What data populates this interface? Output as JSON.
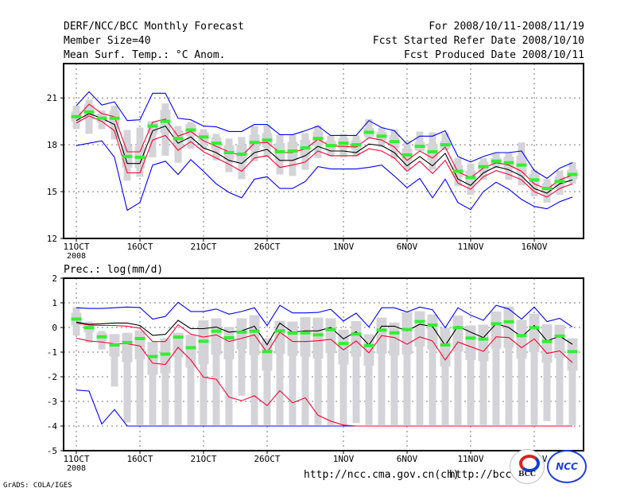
{
  "header": {
    "title": "DERF/NCC/BCC Monthly Forecast",
    "member_size": "Member Size=40",
    "variable": "Mean Surf. Temp.: °C Anom.",
    "period": "For 2008/10/11-2008/11/19",
    "start_date": "Fcst Started Refer Date 2008/10/10",
    "produced_date": "Fcst Produced Date 2008/10/11"
  },
  "footer": {
    "grads": "GrADS: COLA/IGES",
    "url_ncc": "http://ncc.cma.gov.cn(ch)",
    "url_bcc": "http://bcc.",
    "logo_bcc": "BCC",
    "logo_ncc": "NCC"
  },
  "colors": {
    "max_min": "#0000ff",
    "spread": "#ff0033",
    "mean": "#000000",
    "obs": "#33ee33",
    "bar": "#d4d4d8"
  },
  "chart_data": [
    {
      "type": "line",
      "title": "Mean Surf. Temp.: °C Anom.",
      "x_tick_labels": [
        "11OCT",
        "16OCT",
        "21OCT",
        "26OCT",
        "1NOV",
        "6NOV",
        "11NOV",
        "16NOV"
      ],
      "x_tick_days": [
        0,
        5,
        10,
        15,
        21,
        26,
        31,
        36
      ],
      "x_year_label": "2008",
      "y_ticks": [
        "21",
        "18",
        "15",
        "12"
      ],
      "y_tick_values": [
        21,
        18,
        15,
        12
      ],
      "ylim": [
        12,
        23.2
      ],
      "grid": true,
      "days": 40,
      "max": [
        20.5,
        21.4,
        20.55,
        20.75,
        19.55,
        19.6,
        21.3,
        21.3,
        19.7,
        19.6,
        19.2,
        19.15,
        18.85,
        18.85,
        19.3,
        19.3,
        18.65,
        18.65,
        18.9,
        19.2,
        18.6,
        18.6,
        18.6,
        19.55,
        19.1,
        18.9,
        18.05,
        18.55,
        18.55,
        18.9,
        17.25,
        16.9,
        17.25,
        17.5,
        17.5,
        17.6,
        16.35,
        15.85,
        16.5,
        16.85
      ],
      "min": [
        17.95,
        18.1,
        18.25,
        17.2,
        13.8,
        14.3,
        16.7,
        16.95,
        16.1,
        17.05,
        16.3,
        15.5,
        14.95,
        14.6,
        15.8,
        15.95,
        15.2,
        15.2,
        15.65,
        16.6,
        16.45,
        16.45,
        16.45,
        16.55,
        16.7,
        16.0,
        15.25,
        15.85,
        14.6,
        15.8,
        14.3,
        13.85,
        15.0,
        15.6,
        15.15,
        14.5,
        14.05,
        13.9,
        14.35,
        14.65
      ],
      "spread_upper": [
        19.7,
        20.6,
        20.0,
        19.8,
        17.55,
        17.55,
        19.45,
        19.65,
        18.55,
        18.85,
        18.25,
        17.9,
        17.55,
        17.3,
        18.1,
        18.15,
        17.5,
        17.5,
        17.75,
        18.35,
        17.9,
        17.9,
        17.85,
        18.45,
        18.3,
        17.85,
        17.0,
        17.6,
        17.15,
        17.85,
        16.25,
        15.9,
        16.5,
        16.85,
        16.7,
        16.3,
        15.5,
        15.15,
        15.75,
        16.05
      ],
      "spread_lower": [
        19.4,
        19.85,
        19.5,
        18.9,
        16.2,
        16.2,
        18.3,
        18.6,
        17.65,
        18.2,
        17.55,
        17.15,
        16.75,
        16.3,
        17.15,
        17.3,
        16.55,
        16.7,
        16.9,
        17.6,
        17.3,
        17.3,
        17.3,
        17.75,
        17.6,
        17.15,
        16.3,
        16.95,
        16.15,
        17.0,
        15.55,
        15.15,
        15.95,
        16.35,
        16.1,
        15.75,
        15.0,
        14.65,
        15.2,
        15.5
      ],
      "mean": [
        19.55,
        20.0,
        19.7,
        19.3,
        16.8,
        16.8,
        18.9,
        19.2,
        18.1,
        18.5,
        17.8,
        17.5,
        17.0,
        16.8,
        17.5,
        17.7,
        17.0,
        17.0,
        17.3,
        17.9,
        17.6,
        17.6,
        17.5,
        18.05,
        17.95,
        17.5,
        16.65,
        17.25,
        16.65,
        17.45,
        15.8,
        15.4,
        16.2,
        16.6,
        16.4,
        16.0,
        15.2,
        14.9,
        15.5,
        15.75
      ],
      "obs": [
        19.8,
        20.1,
        19.7,
        19.7,
        17.25,
        17.2,
        19.2,
        19.5,
        18.4,
        18.95,
        18.5,
        18.1,
        17.5,
        17.4,
        18.15,
        18.3,
        17.55,
        17.6,
        17.8,
        18.4,
        17.95,
        18.1,
        18.0,
        18.8,
        18.55,
        18.2,
        17.35,
        17.9,
        17.55,
        18.0,
        16.3,
        15.9,
        16.6,
        16.95,
        16.85,
        16.7,
        15.75,
        15.2,
        15.65,
        16.1
      ],
      "bar_high": [
        20.5,
        20.9,
        20.2,
        20.5,
        18.95,
        19.1,
        19.5,
        20.65,
        19.2,
        19.45,
        19.0,
        18.7,
        18.4,
        18.5,
        19.2,
        19.25,
        18.65,
        18.65,
        18.75,
        19.25,
        18.6,
        18.7,
        18.6,
        19.65,
        19.1,
        19.0,
        18.25,
        18.85,
        18.8,
        18.75,
        17.15,
        16.8,
        17.15,
        17.5,
        17.5,
        18.15,
        16.4,
        15.8,
        16.35,
        16.9
      ],
      "bar_low": [
        19.0,
        18.7,
        19.0,
        18.35,
        15.7,
        15.95,
        17.2,
        17.3,
        16.85,
        17.75,
        17.65,
        17.0,
        16.25,
        15.8,
        16.95,
        17.2,
        16.1,
        16.0,
        16.4,
        17.15,
        17.25,
        17.2,
        17.25,
        18.4,
        17.85,
        17.1,
        16.4,
        17.6,
        16.4,
        17.65,
        15.35,
        14.8,
        15.75,
        16.5,
        15.75,
        15.4,
        14.7,
        14.3,
        14.8,
        15.5
      ]
    },
    {
      "type": "line",
      "title": "Prec.: log(mm/d)",
      "x_tick_labels": [
        "11OCT",
        "16OCT",
        "21OCT",
        "26OCT",
        "1NOV",
        "6NOV",
        "11NOV",
        "16NOV"
      ],
      "x_tick_days": [
        0,
        5,
        10,
        15,
        21,
        26,
        31,
        36
      ],
      "x_year_label": "2008",
      "y_ticks": [
        "2",
        "1",
        "0",
        "-1",
        "-2",
        "-3",
        "-4",
        "-5"
      ],
      "y_tick_values": [
        2,
        1,
        0,
        -1,
        -2,
        -3,
        -4,
        -5
      ],
      "ylim": [
        -5,
        2
      ],
      "grid": true,
      "days": 40,
      "max": [
        0.8,
        0.77,
        0.77,
        0.8,
        0.83,
        0.81,
        0.34,
        0.45,
        1.02,
        0.65,
        0.65,
        0.75,
        0.54,
        0.65,
        0.8,
        0.08,
        0.9,
        0.59,
        0.59,
        0.61,
        0.74,
        0.26,
        0.58,
        0.02,
        0.8,
        0.8,
        0.63,
        0.83,
        0.72,
        -0.01,
        0.8,
        0.5,
        0.29,
        0.9,
        0.75,
        0.34,
        0.83,
        0.24,
        0.37,
        0.02
      ],
      "min": [
        -2.54,
        -2.58,
        -3.92,
        -3.33,
        -4,
        -4,
        -4,
        -4,
        -4,
        -4,
        -4,
        -4,
        -4,
        -4,
        -4,
        -4,
        -4,
        -4,
        -4,
        -4,
        -4,
        -4,
        -4,
        -4,
        -4,
        -4,
        -4,
        -4,
        -4,
        -4,
        -4,
        -4,
        -4,
        -4,
        -4,
        -4,
        -4,
        -4,
        -4,
        -4
      ],
      "spread_upper": [
        0.18,
        0.1,
        0.08,
        0.08,
        0.05,
        -0.03,
        -0.57,
        -0.57,
        0.11,
        -0.27,
        -0.39,
        -0.3,
        -0.57,
        -0.44,
        -0.3,
        -1.02,
        -0.19,
        -0.57,
        -0.57,
        -0.54,
        -0.48,
        -0.91,
        -0.55,
        -1.03,
        -0.33,
        -0.41,
        -0.68,
        -0.38,
        -0.55,
        -1.32,
        -0.59,
        -0.78,
        -0.97,
        -0.38,
        -0.41,
        -0.82,
        -0.46,
        -1.05,
        -0.95,
        -1.43
      ],
      "spread_lower": [
        -0.44,
        -0.55,
        -0.59,
        -0.66,
        -0.66,
        -0.75,
        -1.45,
        -1.5,
        -0.81,
        -1.32,
        -2.02,
        -2.1,
        -2.83,
        -2.97,
        -2.77,
        -3.17,
        -2.56,
        -3.06,
        -2.85,
        -3.56,
        -3.8,
        -3.96,
        -4,
        -4,
        -4,
        -4,
        -4,
        -4,
        -4,
        -4,
        -4,
        -4,
        -4,
        -4,
        -4,
        -4,
        -4,
        -4,
        -4,
        -4
      ],
      "mean": [
        0.22,
        0.13,
        0.15,
        0.18,
        0.18,
        0.08,
        -0.32,
        -0.28,
        0.29,
        -0.05,
        -0.05,
        0.02,
        -0.19,
        -0.14,
        0.05,
        -0.7,
        0.18,
        -0.19,
        -0.14,
        -0.14,
        0.0,
        -0.46,
        -0.17,
        -0.71,
        0.05,
        0.05,
        -0.14,
        0.13,
        0.04,
        -0.73,
        0.05,
        -0.19,
        -0.41,
        0.15,
        0.0,
        -0.38,
        0.08,
        -0.55,
        -0.35,
        -0.68
      ],
      "obs": [
        0.34,
        -0.01,
        -0.38,
        -0.71,
        -0.61,
        -0.45,
        -1.18,
        -1.08,
        -0.39,
        -0.82,
        -0.56,
        -0.15,
        -0.42,
        -0.19,
        -0.15,
        -0.98,
        -0.14,
        -0.23,
        -0.22,
        -0.3,
        -0.09,
        -0.65,
        -0.27,
        -0.74,
        -0.11,
        -0.22,
        -0.08,
        0.24,
        0.1,
        -0.71,
        -0.01,
        -0.43,
        -0.47,
        0.15,
        0.23,
        -0.33,
        -0.01,
        -0.57,
        -0.35,
        -0.98
      ],
      "bar_high": [
        0.83,
        0.24,
        -0.14,
        -0.27,
        -0.22,
        -0.12,
        -0.59,
        -0.44,
        -0.22,
        -0.3,
        0.29,
        0.37,
        0.02,
        0.37,
        0.5,
        -0.44,
        0.27,
        0.24,
        0.42,
        0.4,
        0.37,
        -0.09,
        0.26,
        -0.28,
        0.4,
        0.2,
        0.63,
        0.66,
        0.53,
        -0.01,
        0.48,
        0.08,
        0.11,
        0.65,
        0.85,
        0.31,
        0.56,
        0.13,
        0.11,
        -0.44
      ],
      "bar_low": [
        -0.33,
        -0.62,
        -0.89,
        -2.4,
        -3.85,
        -3.96,
        -3.96,
        -3.96,
        -3.96,
        -3.96,
        -3.96,
        -3.96,
        -3.96,
        -2.77,
        -3.96,
        -3.96,
        -3.96,
        -3.96,
        -3.96,
        -3.96,
        -3.96,
        -3.96,
        -3.88,
        -3.96,
        -3.96,
        -3.96,
        -3.96,
        -3.96,
        -3.96,
        -3.96,
        -3.96,
        -3.96,
        -3.96,
        -3.96,
        -3.96,
        -3.96,
        -3.96,
        -3.8,
        -3.96,
        -3.96
      ]
    }
  ]
}
